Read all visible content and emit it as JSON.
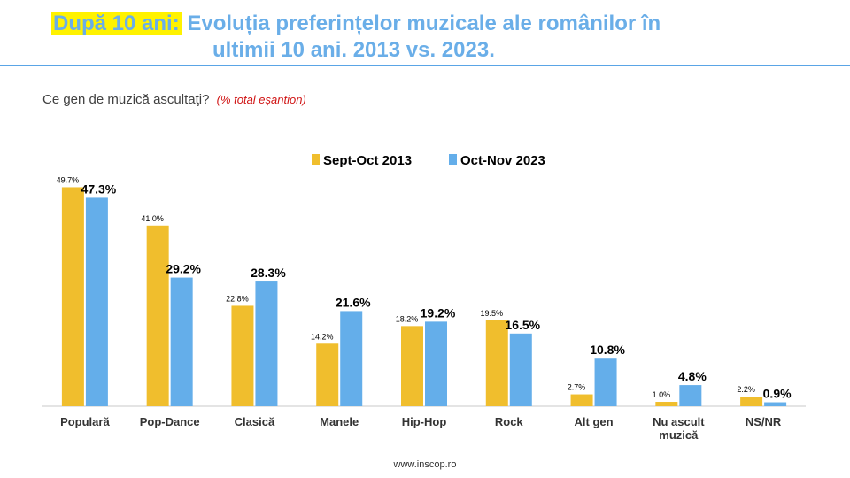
{
  "header": {
    "prefix": "După 10 ani:",
    "title_line1": "Evoluția preferințelor muzicale ale românilor în",
    "title_line2": "ultimii 10 ani. 2013 vs. 2023."
  },
  "question": {
    "text": "Ce gen de muzică ascultaţi?",
    "note": "(% total eșantion)"
  },
  "footer": {
    "source": "www.inscop.ro"
  },
  "colors": {
    "series_2013": "#f0be2d",
    "series_2023": "#64aeea",
    "title": "#6aaee8",
    "highlight": "#fff200",
    "rule": "#5aa5e6"
  },
  "chart_data": {
    "type": "bar",
    "categories": [
      "Populară",
      "Pop-Dance",
      "Clasică",
      "Manele",
      "Hip-Hop",
      "Rock",
      "Alt gen",
      "Nu ascult muzică",
      "NS/NR"
    ],
    "category_lines": [
      [
        "Populară"
      ],
      [
        "Pop-Dance"
      ],
      [
        "Clasică"
      ],
      [
        "Manele"
      ],
      [
        "Hip-Hop"
      ],
      [
        "Rock"
      ],
      [
        "Alt gen"
      ],
      [
        "Nu ascult",
        "muzică"
      ],
      [
        "NS/NR"
      ]
    ],
    "series": [
      {
        "name": "Sept-Oct 2013",
        "values": [
          49.7,
          41.0,
          22.8,
          14.2,
          18.2,
          19.5,
          2.7,
          1.0,
          2.2
        ],
        "labels": [
          "49.7%",
          "41.0%",
          "22.8%",
          "14.2%",
          "18.2%",
          "19.5%",
          "2.7%",
          "1.0%",
          "2.2%"
        ]
      },
      {
        "name": "Oct-Nov 2023",
        "values": [
          47.3,
          29.2,
          28.3,
          21.6,
          19.2,
          16.5,
          10.8,
          4.8,
          0.9
        ],
        "labels": [
          "47.3%",
          "29.2%",
          "28.3%",
          "21.6%",
          "19.2%",
          "16.5%",
          "10.8%",
          "4.8%",
          "0.9%"
        ]
      }
    ],
    "ylim": [
      0,
      52
    ],
    "grid": false,
    "legend": "top-center"
  }
}
